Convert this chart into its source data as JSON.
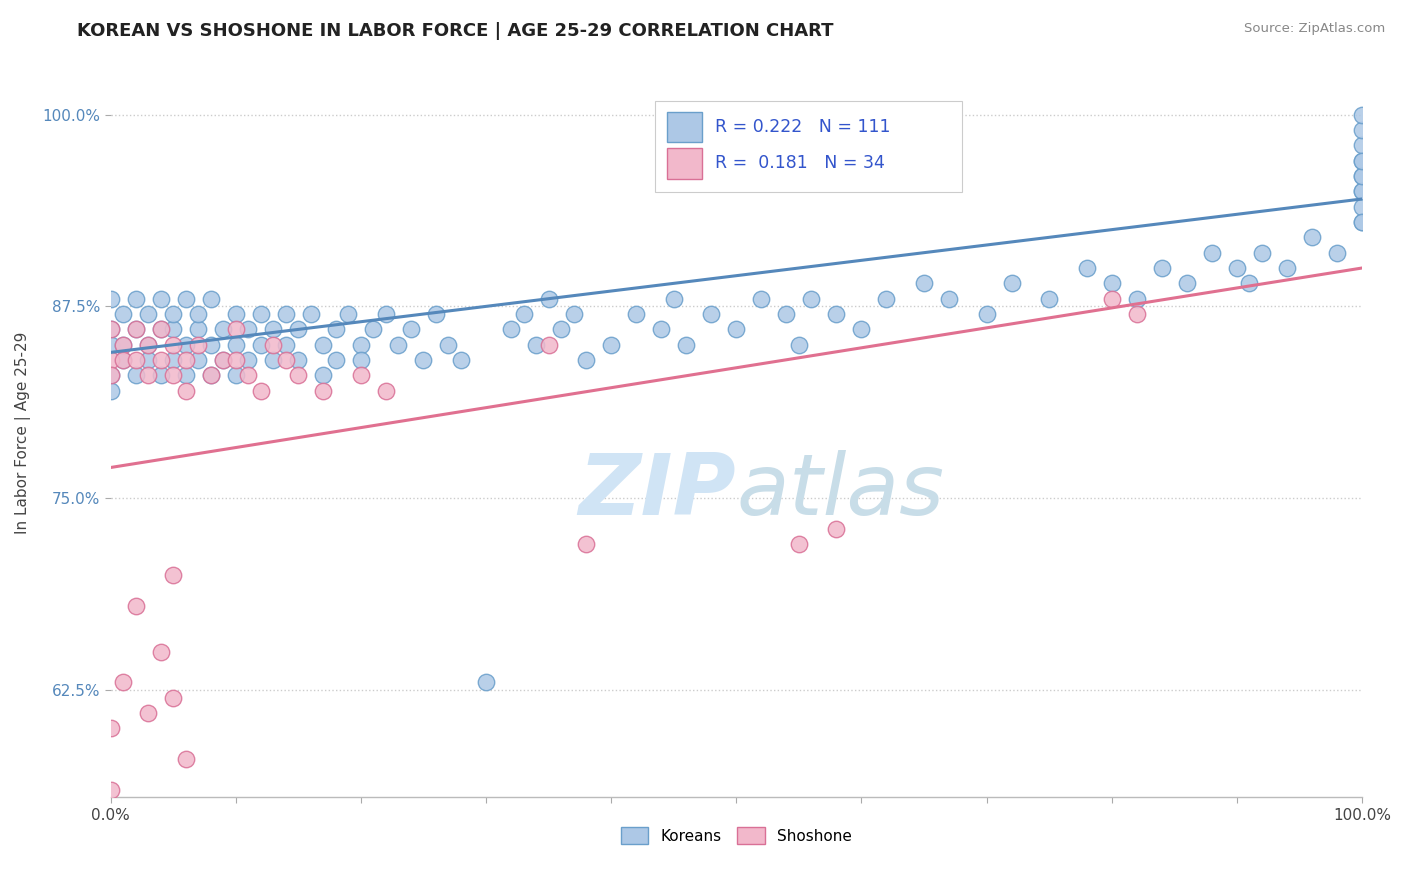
{
  "title": "KOREAN VS SHOSHONE IN LABOR FORCE | AGE 25-29 CORRELATION CHART",
  "source_text": "Source: ZipAtlas.com",
  "ylabel": "In Labor Force | Age 25-29",
  "xlim": [
    0.0,
    1.0
  ],
  "ylim": [
    0.555,
    1.03
  ],
  "xtick_positions": [
    0.0,
    0.1,
    0.2,
    0.3,
    0.4,
    0.5,
    0.6,
    0.7,
    0.8,
    0.9,
    1.0
  ],
  "xtick_edge_labels": {
    "0.0": "0.0%",
    "1.0": "100.0%"
  },
  "yticks": [
    0.625,
    0.75,
    0.875,
    1.0
  ],
  "ytick_labels": [
    "62.5%",
    "75.0%",
    "87.5%",
    "100.0%"
  ],
  "korean_R": 0.222,
  "korean_N": 111,
  "shoshone_R": 0.181,
  "shoshone_N": 34,
  "korean_color": "#adc8e6",
  "korean_edge_color": "#6a9fcb",
  "shoshone_color": "#f2b8cb",
  "shoshone_edge_color": "#d97096",
  "regression_korean_color": "#5588bb",
  "regression_shoshone_color": "#e07090",
  "title_fontsize": 13,
  "watermark_color": "#d0e4f5",
  "background_color": "#ffffff",
  "grid_color": "#cccccc",
  "legend_R_color": "#3355cc",
  "tick_color": "#5588bb",
  "korean_scatter_x": [
    0.0,
    0.0,
    0.0,
    0.0,
    0.0,
    0.01,
    0.01,
    0.01,
    0.02,
    0.02,
    0.02,
    0.03,
    0.03,
    0.03,
    0.04,
    0.04,
    0.04,
    0.05,
    0.05,
    0.05,
    0.06,
    0.06,
    0.06,
    0.07,
    0.07,
    0.07,
    0.08,
    0.08,
    0.08,
    0.09,
    0.09,
    0.1,
    0.1,
    0.1,
    0.11,
    0.11,
    0.12,
    0.12,
    0.13,
    0.13,
    0.14,
    0.14,
    0.15,
    0.15,
    0.16,
    0.17,
    0.17,
    0.18,
    0.18,
    0.19,
    0.2,
    0.2,
    0.21,
    0.22,
    0.23,
    0.24,
    0.25,
    0.26,
    0.27,
    0.28,
    0.3,
    0.32,
    0.33,
    0.34,
    0.35,
    0.36,
    0.37,
    0.38,
    0.4,
    0.42,
    0.44,
    0.45,
    0.46,
    0.48,
    0.5,
    0.52,
    0.54,
    0.55,
    0.56,
    0.58,
    0.6,
    0.62,
    0.65,
    0.67,
    0.7,
    0.72,
    0.75,
    0.78,
    0.8,
    0.82,
    0.84,
    0.86,
    0.88,
    0.9,
    0.91,
    0.92,
    0.94,
    0.96,
    0.98,
    1.0,
    1.0,
    1.0,
    1.0,
    1.0,
    1.0,
    1.0,
    1.0,
    1.0,
    1.0,
    1.0,
    1.0
  ],
  "korean_scatter_y": [
    0.86,
    0.88,
    0.85,
    0.83,
    0.82,
    0.87,
    0.85,
    0.84,
    0.88,
    0.86,
    0.83,
    0.87,
    0.85,
    0.84,
    0.86,
    0.83,
    0.88,
    0.86,
    0.84,
    0.87,
    0.85,
    0.83,
    0.88,
    0.86,
    0.84,
    0.87,
    0.85,
    0.83,
    0.88,
    0.86,
    0.84,
    0.87,
    0.85,
    0.83,
    0.86,
    0.84,
    0.87,
    0.85,
    0.86,
    0.84,
    0.87,
    0.85,
    0.86,
    0.84,
    0.87,
    0.85,
    0.83,
    0.86,
    0.84,
    0.87,
    0.85,
    0.84,
    0.86,
    0.87,
    0.85,
    0.86,
    0.84,
    0.87,
    0.85,
    0.84,
    0.63,
    0.86,
    0.87,
    0.85,
    0.88,
    0.86,
    0.87,
    0.84,
    0.85,
    0.87,
    0.86,
    0.88,
    0.85,
    0.87,
    0.86,
    0.88,
    0.87,
    0.85,
    0.88,
    0.87,
    0.86,
    0.88,
    0.89,
    0.88,
    0.87,
    0.89,
    0.88,
    0.9,
    0.89,
    0.88,
    0.9,
    0.89,
    0.91,
    0.9,
    0.89,
    0.91,
    0.9,
    0.92,
    0.91,
    0.93,
    0.94,
    0.95,
    0.96,
    0.95,
    0.97,
    0.96,
    0.98,
    0.97,
    0.99,
    1.0,
    0.93
  ],
  "shoshone_scatter_x": [
    0.0,
    0.0,
    0.0,
    0.01,
    0.01,
    0.02,
    0.02,
    0.03,
    0.03,
    0.04,
    0.04,
    0.05,
    0.05,
    0.06,
    0.06,
    0.07,
    0.08,
    0.09,
    0.1,
    0.1,
    0.11,
    0.12,
    0.13,
    0.14,
    0.15,
    0.17,
    0.2,
    0.22,
    0.35,
    0.38,
    0.55,
    0.58,
    0.8,
    0.82
  ],
  "shoshone_scatter_y": [
    0.84,
    0.86,
    0.83,
    0.85,
    0.84,
    0.86,
    0.84,
    0.85,
    0.83,
    0.86,
    0.84,
    0.85,
    0.83,
    0.84,
    0.82,
    0.85,
    0.83,
    0.84,
    0.86,
    0.84,
    0.83,
    0.82,
    0.85,
    0.84,
    0.83,
    0.82,
    0.83,
    0.82,
    0.85,
    0.72,
    0.72,
    0.73,
    0.88,
    0.87
  ],
  "shoshone_low_x": [
    0.0,
    0.0,
    0.01,
    0.02,
    0.03,
    0.04,
    0.05,
    0.05,
    0.06
  ],
  "shoshone_low_y": [
    0.6,
    0.56,
    0.63,
    0.68,
    0.61,
    0.65,
    0.7,
    0.62,
    0.58
  ]
}
